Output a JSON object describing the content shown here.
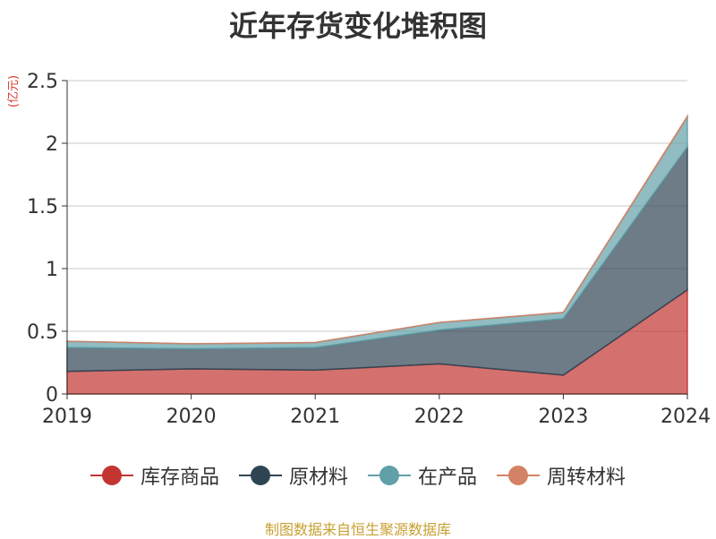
{
  "chart_data": {
    "type": "area",
    "stacked": true,
    "title": "近年存货变化堆积图",
    "unit_label": "(亿元)",
    "x": [
      "2019",
      "2020",
      "2021",
      "2022",
      "2023",
      "2024"
    ],
    "y_ticks": [
      "0",
      "0.5",
      "1",
      "1.5",
      "2",
      "2.5"
    ],
    "ylim": [
      0,
      2.5
    ],
    "grid": true,
    "legend_position": "bottom",
    "series": [
      {
        "name": "库存商品",
        "color": "#c23531",
        "values": [
          0.18,
          0.2,
          0.19,
          0.24,
          0.15,
          0.83
        ]
      },
      {
        "name": "原材料",
        "color": "#2f4554",
        "values": [
          0.19,
          0.16,
          0.18,
          0.27,
          0.45,
          1.14
        ]
      },
      {
        "name": "在产品",
        "color": "#61a0a8",
        "values": [
          0.05,
          0.04,
          0.04,
          0.06,
          0.05,
          0.24
        ]
      },
      {
        "name": "周转材料",
        "color": "#d48265",
        "values": [
          0.001,
          0.001,
          0.001,
          0.001,
          0.001,
          0.005
        ]
      }
    ]
  },
  "footer": "制图数据来自恒生聚源数据库"
}
